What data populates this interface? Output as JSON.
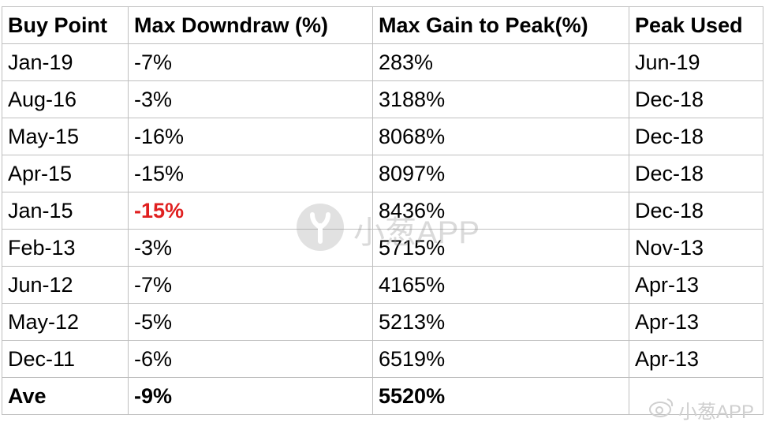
{
  "table": {
    "header": [
      "Buy Point",
      "Max Downdraw (%)",
      "Max Gain to Peak(%)",
      "Peak Used"
    ],
    "rows": [
      [
        "Jan-19",
        "-7%",
        "283%",
        "Jun-19"
      ],
      [
        "Aug-16",
        "-3%",
        "3188%",
        "Dec-18"
      ],
      [
        "May-15",
        "-16%",
        "8068%",
        "Dec-18"
      ],
      [
        "Apr-15",
        "-15%",
        "8097%",
        "Dec-18"
      ],
      [
        "Jan-15",
        "-15%",
        "8436%",
        "Dec-18"
      ],
      [
        "Feb-13",
        "-3%",
        "5715%",
        "Nov-13"
      ],
      [
        "Jun-12",
        "-7%",
        "4165%",
        "Apr-13"
      ],
      [
        "May-12",
        "-5%",
        "5213%",
        "Apr-13"
      ],
      [
        "Dec-11",
        "-6%",
        "6519%",
        "Apr-13"
      ]
    ],
    "footer": [
      "Ave",
      "-9%",
      "5520%"
    ]
  },
  "watermark": {
    "center": "小葱APP",
    "corner": "小葱APP"
  }
}
